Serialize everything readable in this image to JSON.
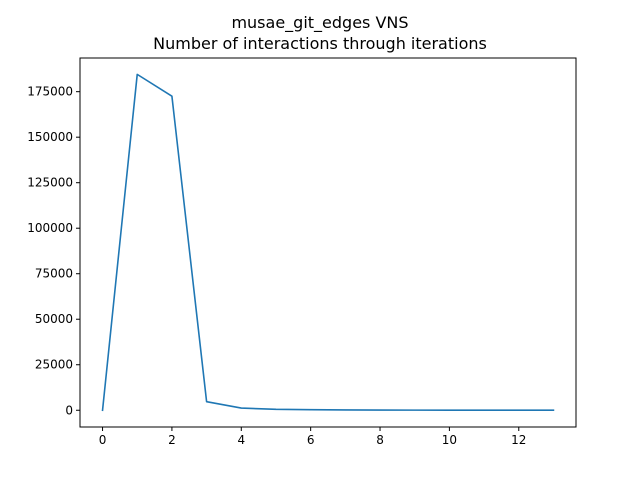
{
  "chart_data": {
    "type": "line",
    "title": "musae_git_edges VNS",
    "subtitle": "Number of interactions through iterations",
    "xlabel": "",
    "ylabel": "",
    "xlim": [
      -0.65,
      13.65
    ],
    "ylim": [
      -9200,
      193500
    ],
    "xticks": [
      0,
      2,
      4,
      6,
      8,
      10,
      12
    ],
    "yticks": [
      0,
      25000,
      50000,
      75000,
      100000,
      125000,
      150000,
      175000
    ],
    "grid": false,
    "legend": "none",
    "series": [
      {
        "color": "#1f77b4",
        "x": [
          0,
          1,
          2,
          3,
          4,
          5,
          6,
          7,
          8,
          9,
          10,
          11,
          12,
          13
        ],
        "y": [
          0,
          184500,
          172500,
          4700,
          1200,
          500,
          300,
          150,
          100,
          70,
          50,
          40,
          30,
          20
        ]
      }
    ]
  }
}
